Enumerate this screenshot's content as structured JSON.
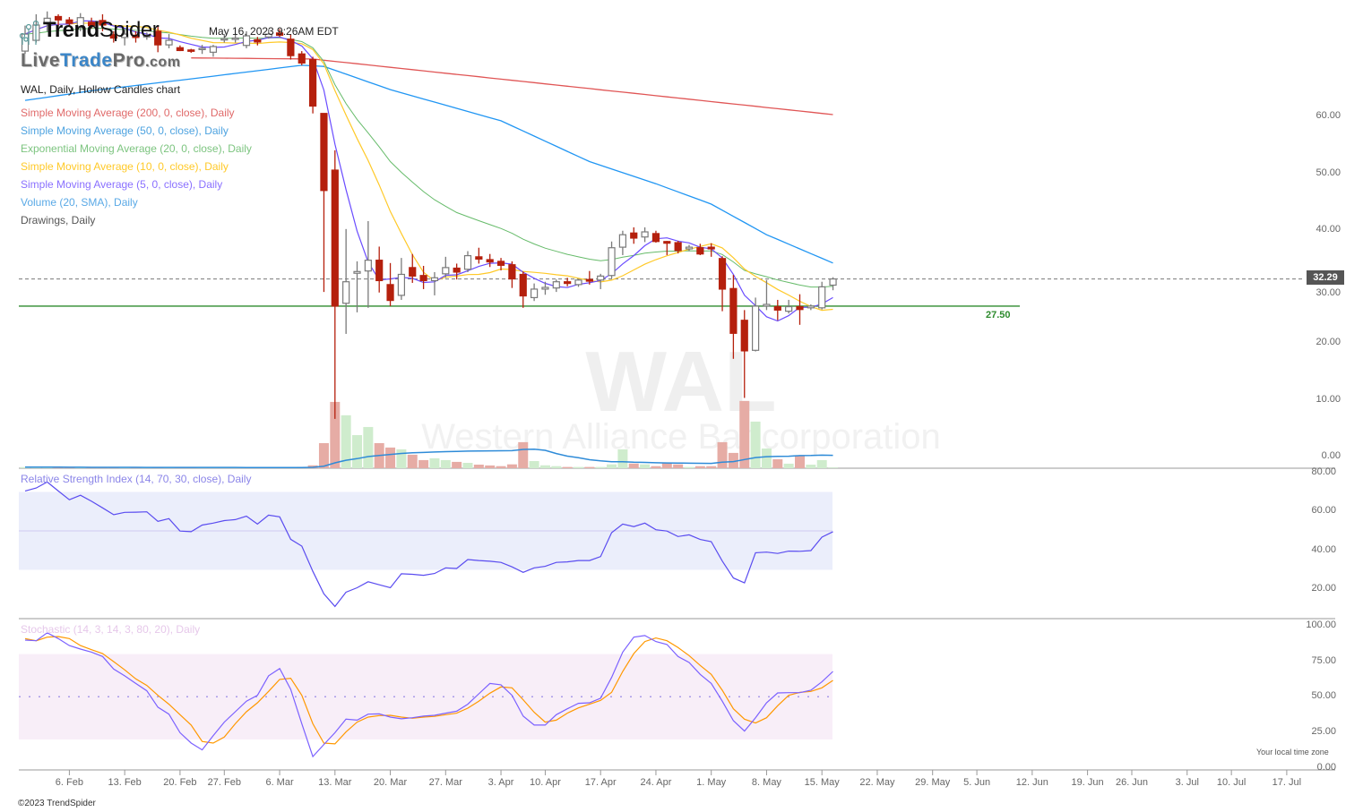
{
  "header": {
    "logo_trend": "Trend",
    "logo_spider": "Spider",
    "logo_site": {
      "live": "Live",
      "trade": "Trade",
      "pro": "Pro",
      "com": ".com"
    },
    "timestamp": "May 16, 2023 9:26AM EDT",
    "chart_title": "WAL, Daily, Hollow Candles chart"
  },
  "legend": [
    {
      "label": "Simple Moving Average (200, 0, close), Daily",
      "color": "#e06a6a"
    },
    {
      "label": "Simple Moving Average (50, 0, close), Daily",
      "color": "#4ea3e0"
    },
    {
      "label": "Exponential Moving Average (20, 0, close), Daily",
      "color": "#7cc47f"
    },
    {
      "label": "Simple Moving Average (10, 0, close), Daily",
      "color": "#ffc928"
    },
    {
      "label": "Simple Moving Average (5, 0, close), Daily",
      "color": "#8a70ff"
    },
    {
      "label": "Volume (20, SMA), Daily",
      "color": "#5aa9e6"
    },
    {
      "label": "Drawings, Daily",
      "color": "#555555"
    }
  ],
  "watermark": {
    "symbol": "WAL",
    "company": "Western Alliance Bancorporation"
  },
  "current_price": {
    "value": 32.29,
    "label": "32.29"
  },
  "drawing": {
    "hline": 27.5,
    "label": "27.50",
    "color": "#2e8b2e"
  },
  "rsi_title": "Relative Strength Index (14, 70, 30, close), Daily",
  "stoch_title": "Stochastic (14, 3, 14, 3, 80, 20), Daily",
  "footer": {
    "timezone": "Your local time zone",
    "copyright": "©2023 TrendSpider"
  },
  "colors": {
    "candle_down": "#b5200d",
    "candle_up": "#7a7a7a",
    "vol_down": "#e6aca5",
    "vol_up": "#cfeccd",
    "vol_sma": "#2e8bd8",
    "sma200": "#e05555",
    "sma50": "#2196f3",
    "ema20": "#66bb6a",
    "sma10": "#ffc928",
    "sma5": "#6a4cff",
    "rsi": "#5a4cf0",
    "rsi_band": "#ebeefb",
    "stoch_k": "#7b61ff",
    "stoch_d": "#ff9800",
    "stoch_band": "#f8eef8"
  },
  "chart_data": {
    "type": "candlestick",
    "symbol": "WAL",
    "interval": "Daily",
    "price_axis": [
      "60.00",
      "50.00",
      "40.00",
      "30.00",
      "20.00",
      "10.00",
      "0.00"
    ],
    "rsi_axis": [
      "80.00",
      "60.00",
      "40.00",
      "20.00"
    ],
    "stoch_axis": [
      "100.00",
      "75.00",
      "50.00",
      "25.00",
      "0.00"
    ],
    "x_ticks": [
      {
        "date": "2023-02-06",
        "label": "6. Feb"
      },
      {
        "date": "2023-02-13",
        "label": "13. Feb"
      },
      {
        "date": "2023-02-20",
        "label": "20. Feb"
      },
      {
        "date": "2023-02-27",
        "label": "27. Feb"
      },
      {
        "date": "2023-03-06",
        "label": "6. Mar"
      },
      {
        "date": "2023-03-13",
        "label": "13. Mar"
      },
      {
        "date": "2023-03-20",
        "label": "20. Mar"
      },
      {
        "date": "2023-03-27",
        "label": "27. Mar"
      },
      {
        "date": "2023-04-03",
        "label": "3. Apr"
      },
      {
        "date": "2023-04-10",
        "label": "10. Apr"
      },
      {
        "date": "2023-04-17",
        "label": "17. Apr"
      },
      {
        "date": "2023-04-24",
        "label": "24. Apr"
      },
      {
        "date": "2023-05-01",
        "label": "1. May"
      },
      {
        "date": "2023-05-08",
        "label": "8. May"
      },
      {
        "date": "2023-05-15",
        "label": "15. May"
      },
      {
        "date": "2023-05-22",
        "label": "22. May"
      },
      {
        "date": "2023-05-29",
        "label": "29. May"
      },
      {
        "date": "2023-06-05",
        "label": "5. Jun"
      },
      {
        "date": "2023-06-12",
        "label": "12. Jun"
      },
      {
        "date": "2023-06-19",
        "label": "19. Jun"
      },
      {
        "date": "2023-06-26",
        "label": "26. Jun"
      },
      {
        "date": "2023-07-03",
        "label": "3. Jul"
      },
      {
        "date": "2023-07-10",
        "label": "10. Jul"
      },
      {
        "date": "2023-07-17",
        "label": "17. Jul"
      }
    ],
    "candles_columns": [
      "date",
      "open",
      "high",
      "low",
      "close",
      "volume_m"
    ],
    "candles": [
      [
        "2023-01-31",
        72.5,
        77,
        72,
        75.5,
        0.8
      ],
      [
        "2023-02-01",
        74.4,
        79,
        74,
        77.1,
        0.9
      ],
      [
        "2023-02-02",
        77.5,
        79.5,
        76,
        78.3,
        0.8
      ],
      [
        "2023-02-03",
        78.6,
        79,
        77,
        78.0,
        0.6
      ],
      [
        "2023-02-06",
        78,
        78.5,
        77,
        77.4,
        0.5
      ],
      [
        "2023-02-07",
        76.8,
        79.2,
        76,
        78.4,
        0.6
      ],
      [
        "2023-02-08",
        77.6,
        78.4,
        76.5,
        77,
        0.5
      ],
      [
        "2023-02-09",
        77.9,
        79,
        76,
        77.1,
        0.6
      ],
      [
        "2023-02-10",
        75.4,
        76,
        74,
        74.8,
        0.6
      ],
      [
        "2023-02-13",
        74.9,
        76.2,
        73.5,
        75.5,
        0.5
      ],
      [
        "2023-02-14",
        75.3,
        76,
        74,
        74.9,
        0.5
      ],
      [
        "2023-02-15",
        75,
        75.8,
        74.5,
        75.3,
        0.4
      ],
      [
        "2023-02-16",
        76,
        77,
        72.3,
        73.6,
        0.6
      ],
      [
        "2023-02-17",
        73.6,
        75.5,
        73,
        74.4,
        0.5
      ],
      [
        "2023-02-21",
        73.1,
        73.5,
        72.5,
        72.6,
        0.5
      ],
      [
        "2023-02-22",
        72.7,
        72.9,
        72.2,
        72.5,
        0.4
      ],
      [
        "2023-02-23",
        72.9,
        73.6,
        72,
        73,
        0.5
      ],
      [
        "2023-02-24",
        72.3,
        73.6,
        71.5,
        73.3,
        0.5
      ],
      [
        "2023-02-27",
        74.5,
        75.5,
        74,
        74.7,
        0.4
      ],
      [
        "2023-02-28",
        74.6,
        75.6,
        74,
        74.8,
        0.5
      ],
      [
        "2023-03-01",
        73.5,
        76,
        73,
        75.2,
        0.5
      ],
      [
        "2023-03-02",
        74.5,
        75,
        73.5,
        74.1,
        0.5
      ],
      [
        "2023-03-03",
        75,
        76.3,
        74.7,
        75.5,
        0.5
      ],
      [
        "2023-03-06",
        75.7,
        76.4,
        75,
        75.3,
        0.5
      ],
      [
        "2023-03-07",
        74.6,
        75.5,
        71,
        71.7,
        0.8
      ],
      [
        "2023-03-08",
        72,
        72.5,
        70,
        70.4,
        1.0
      ],
      [
        "2023-03-09",
        71,
        71.5,
        61.5,
        62.8,
        2.1
      ],
      [
        "2023-03-10",
        61.5,
        61.5,
        30,
        47.9,
        18.2
      ],
      [
        "2023-03-13",
        51.5,
        55,
        7.6,
        27.5,
        48.1
      ],
      [
        "2023-03-14",
        28,
        41.1,
        22.6,
        31.8,
        38.4
      ],
      [
        "2023-03-15",
        33.3,
        35.4,
        26.4,
        33.6,
        24
      ],
      [
        "2023-03-16",
        33.7,
        42.5,
        27.2,
        35.6,
        29.9
      ],
      [
        "2023-03-17",
        35.6,
        38,
        29.9,
        32,
        18.2
      ],
      [
        "2023-03-20",
        31.3,
        35.1,
        27.5,
        28.5,
        15
      ],
      [
        "2023-03-21",
        29.4,
        36,
        28.6,
        33.1,
        13.7
      ],
      [
        "2023-03-22",
        34.3,
        36.7,
        31.6,
        32.8,
        9.8
      ],
      [
        "2023-03-23",
        32.9,
        34.6,
        30.5,
        32,
        5.9
      ],
      [
        "2023-03-24",
        32,
        33.5,
        29.4,
        32.5,
        7.2
      ],
      [
        "2023-03-27",
        33.2,
        36.2,
        32.5,
        34.3,
        5.9
      ],
      [
        "2023-03-28",
        34.2,
        35,
        32.2,
        33.5,
        4.6
      ],
      [
        "2023-03-29",
        34,
        37.2,
        33.5,
        36.4,
        3.9
      ],
      [
        "2023-03-30",
        36.2,
        37.8,
        35,
        35.8,
        2.6
      ],
      [
        "2023-03-31",
        35.7,
        36.7,
        34.4,
        35.3,
        2
      ],
      [
        "2023-04-03",
        35.4,
        36,
        33.8,
        34.7,
        1.5
      ],
      [
        "2023-04-04",
        34.8,
        35.4,
        30.7,
        32.3,
        2.8
      ],
      [
        "2023-04-05",
        33.1,
        33.6,
        27.2,
        29.3,
        18.9
      ],
      [
        "2023-04-06",
        29,
        31.5,
        28.4,
        30.5,
        5.2
      ],
      [
        "2023-04-10",
        30.5,
        31.8,
        29.5,
        30.8,
        2.1
      ],
      [
        "2023-04-11",
        30.7,
        32.2,
        30,
        31.8,
        1.5
      ],
      [
        "2023-04-12",
        31.8,
        32.5,
        31,
        31.5,
        0.9
      ],
      [
        "2023-04-13",
        31.3,
        32.3,
        30.9,
        32.1,
        0.9
      ],
      [
        "2023-04-14",
        32.2,
        33.7,
        31.3,
        31.9,
        0.9
      ],
      [
        "2023-04-17",
        32.1,
        33.2,
        30.5,
        32.8,
        0.9
      ],
      [
        "2023-04-18",
        32.9,
        38.9,
        32.4,
        37.8,
        2.8
      ],
      [
        "2023-04-19",
        37.9,
        40.8,
        36.5,
        40.1,
        13.7
      ],
      [
        "2023-04-20",
        40.4,
        41.4,
        38.5,
        39.5,
        3.4
      ],
      [
        "2023-04-21",
        39.7,
        41.4,
        38.8,
        40.6,
        2.8
      ],
      [
        "2023-04-24",
        40.3,
        40.8,
        38.7,
        38.9,
        1.5
      ],
      [
        "2023-04-25",
        38.9,
        39,
        36.5,
        38.6,
        4.1
      ],
      [
        "2023-04-26",
        38.7,
        39,
        36.8,
        37.3,
        2.8
      ],
      [
        "2023-04-27",
        37.6,
        38.3,
        37.2,
        37.9,
        0.9
      ],
      [
        "2023-04-28",
        37.8,
        38.5,
        36.5,
        36.7,
        1.5
      ],
      [
        "2023-05-01",
        37.9,
        38.6,
        36.2,
        37.6,
        1.5
      ],
      [
        "2023-05-02",
        35.9,
        36.3,
        26.6,
        30.5,
        18.9
      ],
      [
        "2023-05-03",
        30.6,
        33,
        18.2,
        22.7,
        11.1
      ],
      [
        "2023-05-04",
        25,
        26.8,
        11.3,
        19.6,
        48.8
      ],
      [
        "2023-05-05",
        19.7,
        29,
        19.5,
        27.5,
        33.8
      ],
      [
        "2023-05-08",
        27.5,
        32.1,
        26.8,
        27.8,
        14.3
      ],
      [
        "2023-05-09",
        27.4,
        28.6,
        25,
        26.8,
        6.5
      ],
      [
        "2023-05-10",
        26.6,
        28.6,
        26.2,
        27.4,
        3.3
      ],
      [
        "2023-05-11",
        27.4,
        29.6,
        24.2,
        26.9,
        9.1
      ],
      [
        "2023-05-12",
        27.2,
        27.8,
        26.8,
        27.5,
        2.6
      ],
      [
        "2023-05-15",
        27.2,
        31.8,
        26.9,
        30.9,
        5.9
      ],
      [
        "2023-05-16",
        31.2,
        32.6,
        30.3,
        32.29,
        0.5
      ]
    ],
    "sma200_points": [
      [
        "2023-02-22",
        71.3
      ],
      [
        "2023-03-09",
        71.1
      ],
      [
        "2023-05-16",
        61.3
      ]
    ],
    "sma50_points": [
      [
        "2023-01-31",
        63.8
      ],
      [
        "2023-02-08",
        65.5
      ],
      [
        "2023-02-22",
        67.6
      ],
      [
        "2023-03-08",
        70
      ],
      [
        "2023-03-10",
        69.8
      ],
      [
        "2023-03-20",
        65.7
      ],
      [
        "2023-04-03",
        60.2
      ],
      [
        "2023-04-14",
        53
      ],
      [
        "2023-04-24",
        49.1
      ],
      [
        "2023-05-01",
        45.5
      ],
      [
        "2023-05-08",
        40.1
      ],
      [
        "2023-05-16",
        35.1
      ]
    ],
    "rsi": [
      70.5,
      72,
      75.1,
      70.5,
      66,
      68.3,
      65.2,
      61.8,
      58.3,
      59.5,
      59.6,
      59.8,
      54.9,
      56.3,
      49.9,
      49.6,
      53,
      54,
      55.3,
      55.8,
      57.6,
      53.5,
      58.1,
      57.2,
      45.7,
      42.2,
      29.2,
      17.7,
      11.2,
      18.5,
      20.8,
      23.9,
      22.3,
      20.8,
      28,
      27.7,
      27.2,
      28.1,
      31,
      30.7,
      35.3,
      34.8,
      34.4,
      33.8,
      31.5,
      28.7,
      31,
      31.8,
      33.8,
      34.1,
      34.8,
      34.8,
      36.8,
      49.1,
      53.5,
      52.2,
      54,
      50.6,
      49.9,
      47.1,
      48,
      45.6,
      44.5,
      34.5,
      25.8,
      23.3,
      38.8,
      39.1,
      38.4,
      39.6,
      39.5,
      39.9,
      46.8,
      49.6
    ],
    "rsi_levels": {
      "upper": 70,
      "lower": 30,
      "mid": 50
    },
    "stoch_k": [
      89.8,
      89.4,
      95,
      90.9,
      86,
      83.5,
      81.4,
      78.3,
      69.5,
      64.7,
      59.4,
      54.2,
      42.7,
      37.8,
      24.8,
      17.5,
      12.7,
      22.7,
      32.2,
      39.5,
      46.9,
      51,
      64.7,
      69.9,
      55.2,
      31.1,
      8,
      16.5,
      24.8,
      34.3,
      33.6,
      37.8,
      38,
      35.7,
      34.5,
      35.3,
      36.4,
      37,
      38.5,
      39.9,
      44.8,
      52.1,
      59.4,
      58.4,
      51,
      36.4,
      30.1,
      30.1,
      37.4,
      41.6,
      45.4,
      45.8,
      49,
      63.6,
      81.4,
      91.9,
      93,
      88.8,
      86.7,
      78.3,
      74.1,
      65.7,
      59.4,
      46.9,
      33.2,
      25.9,
      35.3,
      45.8,
      52.7,
      52.9,
      52.9,
      54.6,
      60.5,
      67.8
    ],
    "stoch_d": [
      90.9,
      89.4,
      91.9,
      92.3,
      90.9,
      86,
      83.1,
      80.4,
      74.7,
      68.9,
      62.6,
      58,
      51,
      44.8,
      37.4,
      30.1,
      18.6,
      17.5,
      21.7,
      31.1,
      39.5,
      45.8,
      53.8,
      62.2,
      63,
      51,
      31.1,
      17.5,
      16.9,
      25.3,
      32.2,
      35.7,
      36.8,
      37,
      35.7,
      34.9,
      35.7,
      36.2,
      37.4,
      38.5,
      42,
      46.9,
      52.5,
      56.9,
      56.3,
      47.9,
      39.1,
      32.2,
      33.6,
      38.5,
      42.2,
      44.8,
      47.5,
      53.1,
      67.8,
      80.4,
      88.8,
      91.3,
      89.4,
      84.6,
      78.9,
      72,
      65.7,
      54.6,
      41.6,
      34.3,
      31.6,
      35.3,
      43.7,
      51,
      53.1,
      53.8,
      56.3,
      61.5
    ],
    "stoch_levels": {
      "upper": 80,
      "lower": 20,
      "mid": 50
    }
  }
}
